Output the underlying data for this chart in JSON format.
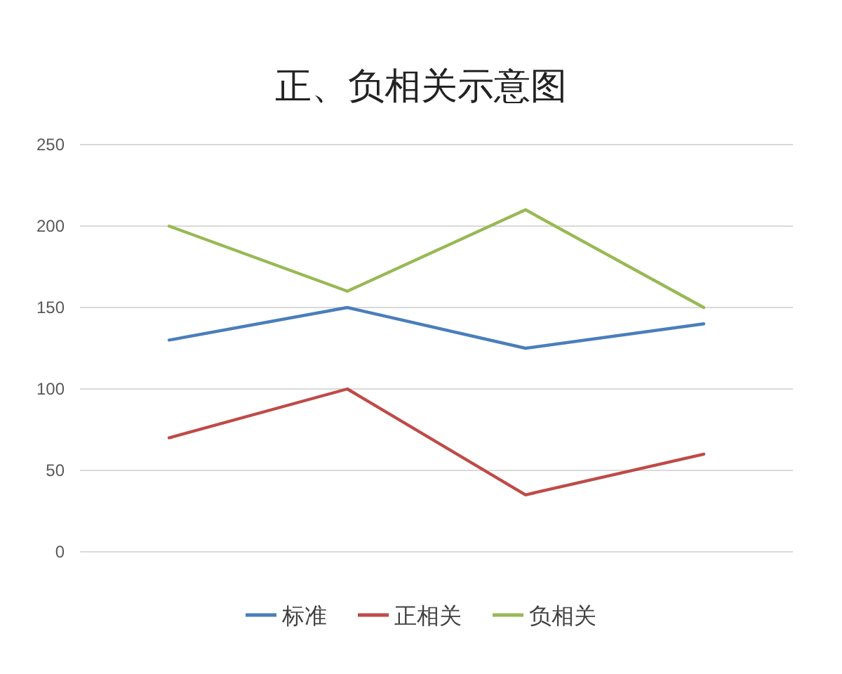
{
  "chart_data": {
    "type": "line",
    "title": "正、负相关示意图",
    "categories": [
      null,
      null,
      null,
      null
    ],
    "series": [
      {
        "name": "标准",
        "color": "#4a7ebb",
        "values": [
          130,
          150,
          125,
          140
        ]
      },
      {
        "name": "正相关",
        "color": "#be4b48",
        "values": [
          70,
          100,
          35,
          60
        ]
      },
      {
        "name": "负相关",
        "color": "#98b954",
        "values": [
          200,
          160,
          210,
          150
        ]
      }
    ],
    "ylim": [
      0,
      250
    ],
    "yticks": [
      0,
      50,
      100,
      150,
      200,
      250
    ],
    "grid": "y",
    "legend": "bottom",
    "marker": "none",
    "line_style": "solid"
  }
}
